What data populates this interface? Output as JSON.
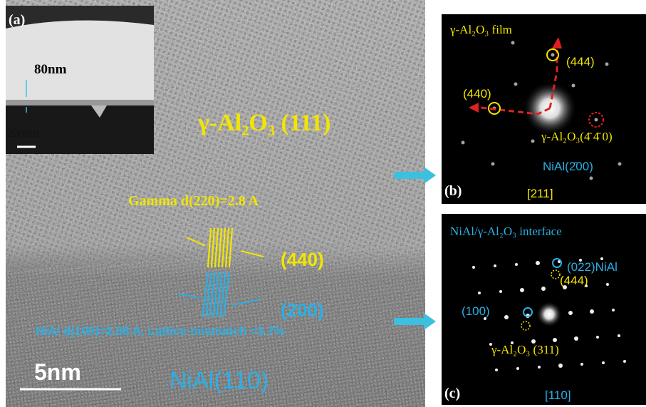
{
  "panel_a": {
    "label": "(a)",
    "thickness": "80nm",
    "scale_bar": "200nm"
  },
  "main": {
    "film_label": "γ-Al₂O₃ (111)",
    "gamma_spacing": "Gamma d(220)=2.8 A",
    "gamma_plane": "(440)",
    "nial_plane": "(200)",
    "nial_spacing": "NiAl d(100)=2.88 A, Lattice mismatch =3.7%",
    "scale_bar": "5nm",
    "substrate": "NiAl(110)"
  },
  "panel_b": {
    "title": "γ-Al₂O₃ film",
    "spot_444": "(444)",
    "spot_440": "(440)",
    "spot_gamma": "γ-Al₂O₃(4̄ 4̄ 0)",
    "spot_nial": "NiAl(2̄00)",
    "label": "(b)",
    "zone_axis": "[211]"
  },
  "panel_c": {
    "title": "NiAl/γ-Al₂O₃ interface",
    "spot_nial": "(022)NiAl",
    "spot_444": "(444)",
    "spot_100": "(100)",
    "spot_gamma": "γ-Al₂O₃ (311)",
    "label": "(c)",
    "zone_axis": "[110]"
  }
}
